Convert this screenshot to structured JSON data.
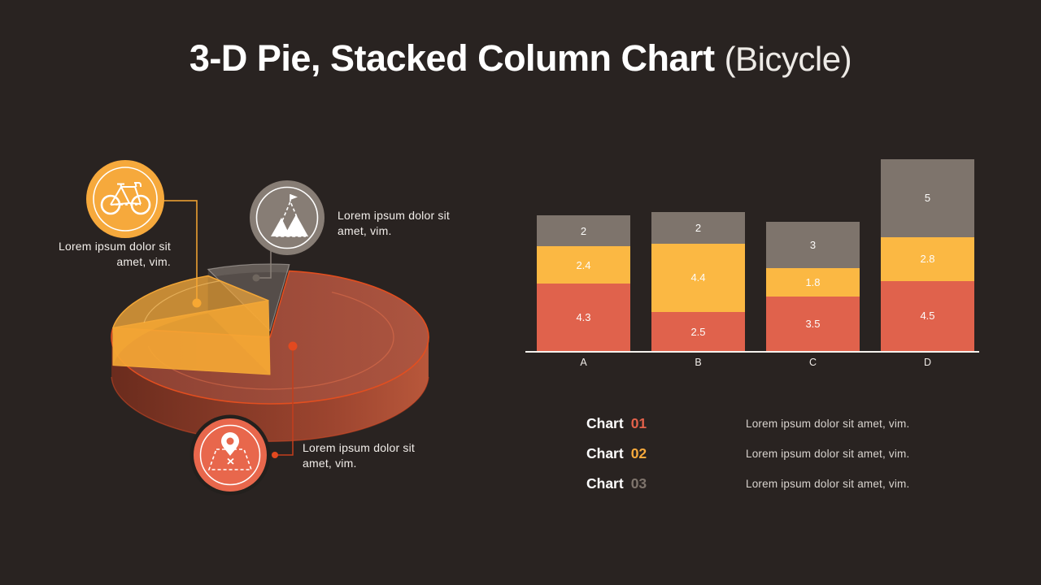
{
  "slide": {
    "background": "#292321"
  },
  "title": {
    "main": "3-D Pie, Stacked Column Chart",
    "suffix": "(Bicycle)"
  },
  "callouts": [
    {
      "id": "bicycle",
      "icon": "bicycle-icon",
      "circle_color": "#F6A93C",
      "text": "Lorem ipsum dolor sit amet, vim."
    },
    {
      "id": "mountain",
      "icon": "mountain-flag-icon",
      "circle_color": "#877D75",
      "text": "Lorem ipsum dolor sit amet, vim."
    },
    {
      "id": "map-pin",
      "icon": "map-pin-icon",
      "circle_color": "#E8674C",
      "text": "Lorem ipsum dolor sit amet, vim."
    }
  ],
  "chart_data": [
    {
      "type": "pie",
      "style": "3d-exploded",
      "labels_shown": false,
      "slices": [
        {
          "name": "Chart 01",
          "color": "#E2614A",
          "percent_estimate": 70
        },
        {
          "name": "Chart 02",
          "color": "#FBB040",
          "percent_estimate": 20
        },
        {
          "name": "Chart 03",
          "color": "#7E746C",
          "percent_estimate": 10
        }
      ]
    },
    {
      "type": "bar",
      "stacked": true,
      "categories": [
        "A",
        "B",
        "C",
        "D"
      ],
      "series": [
        {
          "name": "Chart 01",
          "color": "#E0624C",
          "values": [
            4.3,
            2.5,
            3.5,
            4.5
          ]
        },
        {
          "name": "Chart 02",
          "color": "#FBB843",
          "values": [
            2.4,
            4.4,
            1.8,
            2.8
          ]
        },
        {
          "name": "Chart 03",
          "color": "#7E746C",
          "values": [
            2,
            2,
            3,
            5
          ]
        }
      ],
      "value_labels": true,
      "axis_line": true,
      "gridlines": false,
      "ylim": [
        0,
        12.3
      ],
      "legend_position": "below-left-of-chart"
    }
  ],
  "legend": {
    "items": [
      {
        "label": "Chart",
        "number": "01",
        "number_color": "#E2614A",
        "description": "Lorem ipsum dolor sit amet, vim."
      },
      {
        "label": "Chart",
        "number": "02",
        "number_color": "#F6A93C",
        "description": "Lorem ipsum dolor sit amet, vim."
      },
      {
        "label": "Chart",
        "number": "03",
        "number_color": "#7E746C",
        "description": "Lorem ipsum dolor sit amet, vim."
      }
    ]
  }
}
